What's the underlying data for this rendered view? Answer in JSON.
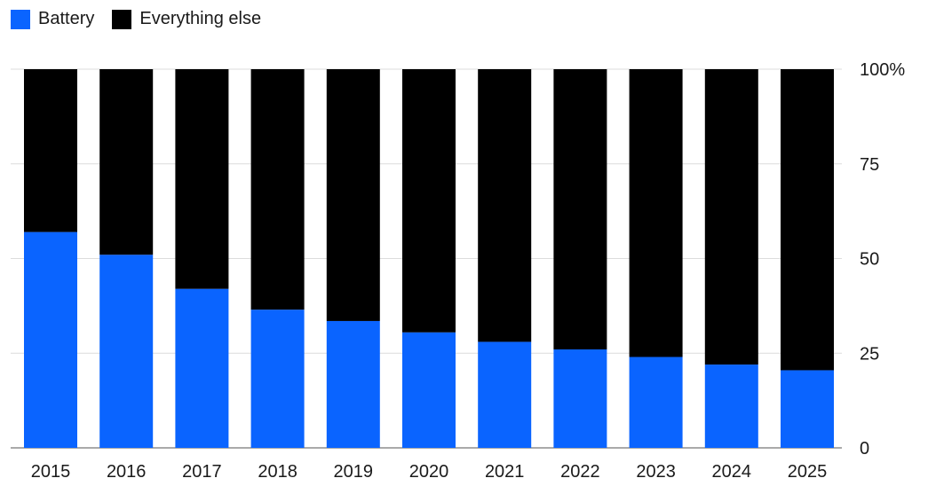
{
  "chart_data": {
    "type": "bar",
    "stacked": true,
    "categories": [
      "2015",
      "2016",
      "2017",
      "2018",
      "2019",
      "2020",
      "2021",
      "2022",
      "2023",
      "2024",
      "2025"
    ],
    "series": [
      {
        "name": "Battery",
        "color": "#0a64ff",
        "values": [
          57,
          51,
          42,
          36.5,
          33.5,
          30.5,
          28,
          26,
          24,
          22,
          20.5
        ]
      },
      {
        "name": "Everything else",
        "color": "#000000",
        "values": [
          43,
          49,
          58,
          63.5,
          66.5,
          69.5,
          72,
          74,
          76,
          78,
          79.5
        ]
      }
    ],
    "ylim": [
      0,
      100
    ],
    "yticks": [
      {
        "value": 0,
        "label": "0"
      },
      {
        "value": 25,
        "label": "25"
      },
      {
        "value": 50,
        "label": "50"
      },
      {
        "value": 75,
        "label": "75"
      },
      {
        "value": 100,
        "label": "100%"
      }
    ],
    "y_axis_side": "right",
    "grid": true,
    "legend_position": "top-left"
  }
}
